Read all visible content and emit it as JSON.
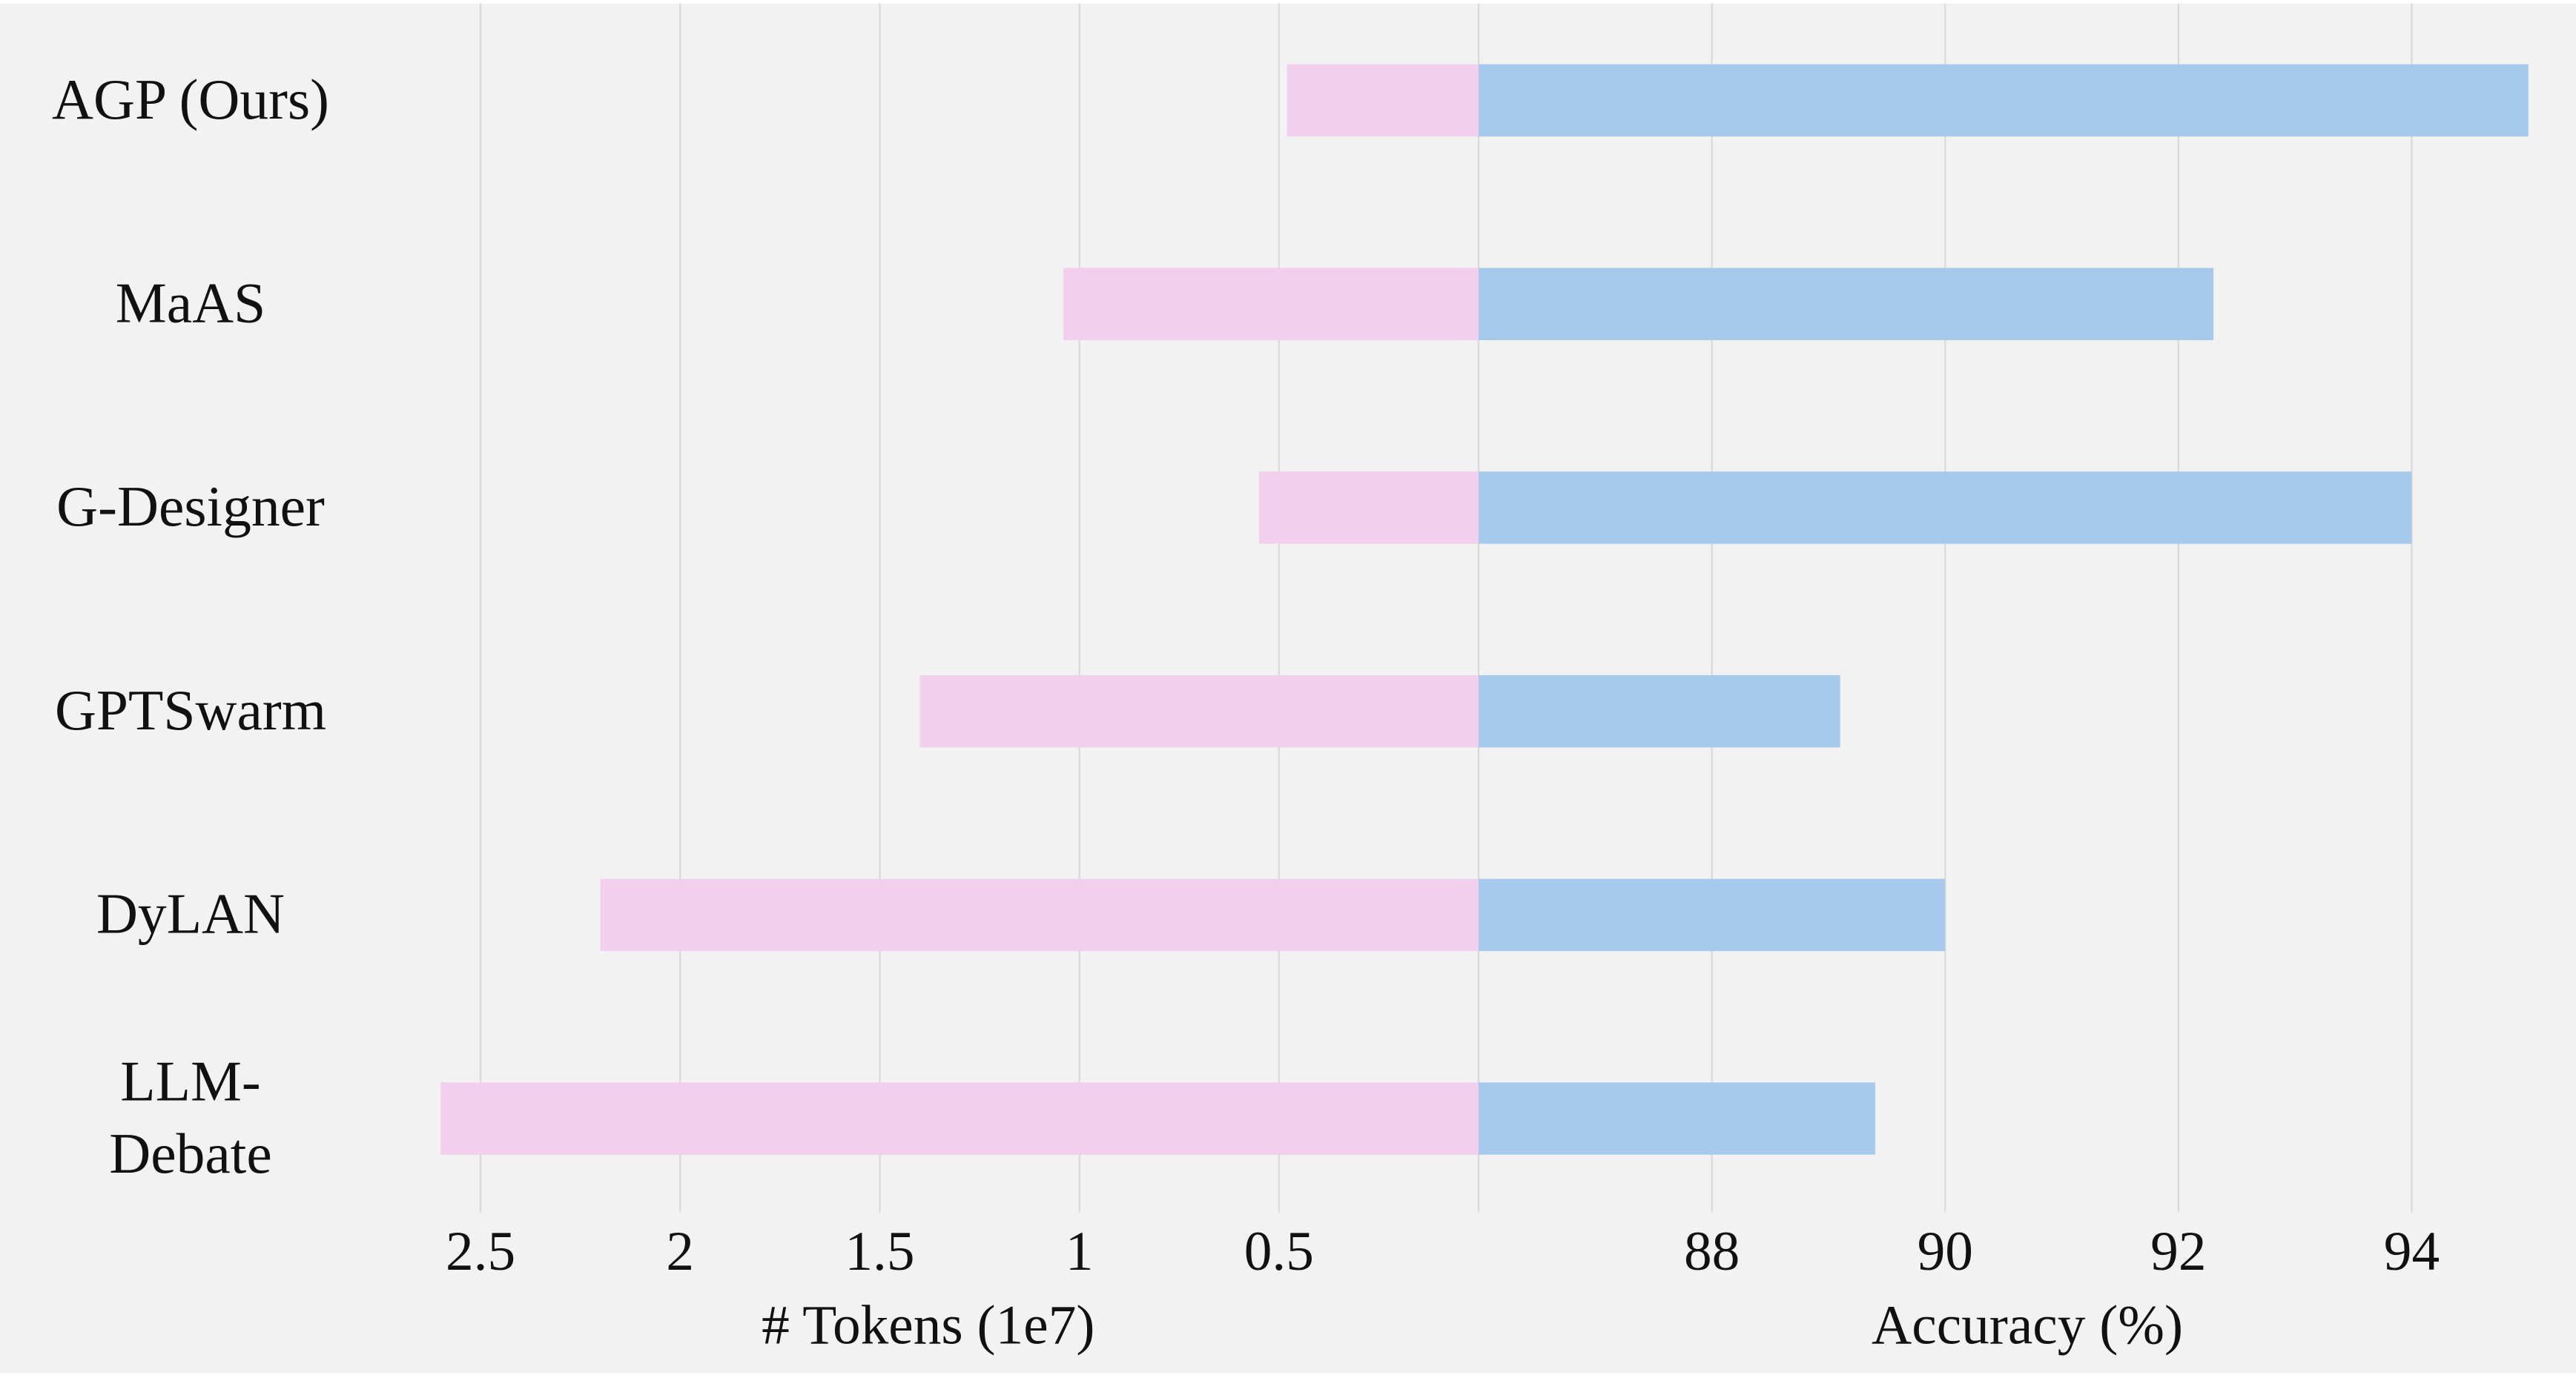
{
  "chart_data": [
    {
      "type": "bar",
      "orientation": "horizontal",
      "categories": [
        "AGP (Ours)",
        "MaAS",
        "G-Designer",
        "GPTSwarm",
        "DyLAN",
        "LLM-Debate"
      ],
      "series": [
        {
          "values": [
            0.48,
            1.04,
            0.55,
            1.4,
            2.2,
            2.6
          ]
        }
      ],
      "xlabel": "# Tokens (1e7)",
      "ylabel": "",
      "title": "",
      "xticks": [
        "2.5",
        "2",
        "1.5",
        "1",
        "0.5"
      ],
      "xlim": [
        0,
        2.65
      ],
      "x_direction": "reversed",
      "color": "#f2cfec",
      "grid": true
    },
    {
      "type": "bar",
      "orientation": "horizontal",
      "categories": [
        "AGP (Ours)",
        "MaAS",
        "G-Designer",
        "GPTSwarm",
        "DyLAN",
        "LLM-Debate"
      ],
      "series": [
        {
          "values": [
            95.0,
            92.3,
            94.0,
            89.1,
            90.0,
            89.4
          ]
        }
      ],
      "xlabel": "Accuracy (%)",
      "ylabel": "",
      "title": "",
      "xticks": [
        "88",
        "90",
        "92",
        "94"
      ],
      "xlim": [
        86,
        95.2
      ],
      "color": "#a7c9ec",
      "grid": true
    }
  ],
  "category_labels": [
    [
      "AGP (Ours)"
    ],
    [
      "MaAS"
    ],
    [
      "G-Designer"
    ],
    [
      "GPTSwarm"
    ],
    [
      "DyLAN"
    ],
    [
      "LLM-",
      "Debate"
    ]
  ],
  "colors": {
    "background": "#f2f2f2",
    "grid": "#d9d9d9",
    "tokens_bar": "#f2cfec",
    "accuracy_bar": "#a7c9ec"
  }
}
